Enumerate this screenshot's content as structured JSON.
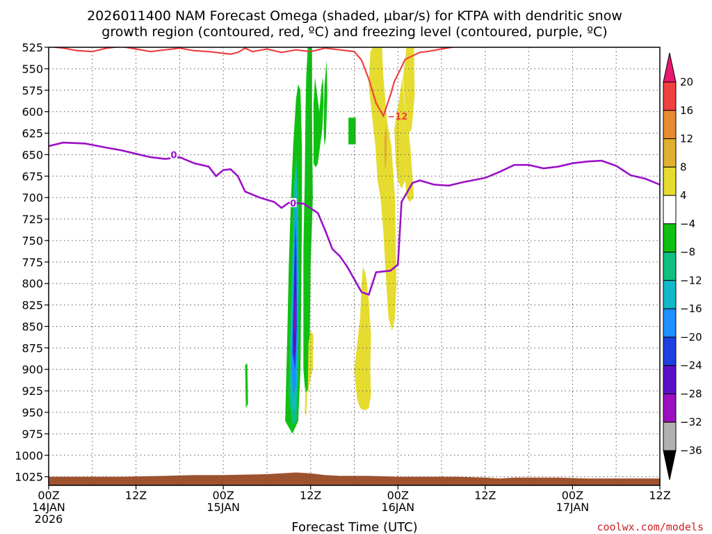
{
  "chart_data": {
    "type": "area",
    "title": "2026011400 NAM Forecast Omega (shaded, µbar/s) for KTPA with dendritic snow",
    "title_line2": "growth region (contoured, red, ºC) and freezing level (contoured, purple, ºC)",
    "xlabel": "Forecast Time (UTC)",
    "ylabel": "",
    "watermark": "coolwx.com/models",
    "yticks": [
      525,
      550,
      575,
      600,
      625,
      650,
      675,
      700,
      725,
      750,
      775,
      800,
      825,
      850,
      875,
      900,
      925,
      950,
      975,
      1000,
      1025
    ],
    "ylim": [
      525,
      1035
    ],
    "xlim": [
      0,
      84
    ],
    "xticks": [
      {
        "h": 0,
        "label": "00Z",
        "date": "14JAN",
        "year": "2026"
      },
      {
        "h": 12,
        "label": "12Z",
        "date": "",
        "year": ""
      },
      {
        "h": 24,
        "label": "00Z",
        "date": "15JAN",
        "year": ""
      },
      {
        "h": 36,
        "label": "12Z",
        "date": "",
        "year": ""
      },
      {
        "h": 48,
        "label": "00Z",
        "date": "16JAN",
        "year": ""
      },
      {
        "h": 60,
        "label": "12Z",
        "date": "",
        "year": ""
      },
      {
        "h": 72,
        "label": "00Z",
        "date": "17JAN",
        "year": ""
      },
      {
        "h": 84,
        "label": "12Z",
        "date": "",
        "year": ""
      }
    ],
    "colorbar": {
      "labels": [
        "20",
        "16",
        "12",
        "8",
        "4",
        "−4",
        "−8",
        "−12",
        "−16",
        "−20",
        "−24",
        "−28",
        "−32",
        "−36"
      ],
      "colors": [
        "#e8196e",
        "#f04040",
        "#e88a30",
        "#e0b030",
        "#e6dc30",
        "#ffffff",
        "#10c010",
        "#10c080",
        "#10b8c8",
        "#1e90ff",
        "#1e40e0",
        "#5a10c8",
        "#9a10c0",
        "#b0b0b0",
        "#000000"
      ]
    },
    "freezing_level": {
      "name": "freezing level (0 ºC)",
      "color": "#9b10c8",
      "contour_label": "0",
      "points": [
        [
          0,
          640
        ],
        [
          2,
          636
        ],
        [
          5,
          637
        ],
        [
          8,
          642
        ],
        [
          10,
          645
        ],
        [
          12,
          649
        ],
        [
          14,
          653
        ],
        [
          16,
          655
        ],
        [
          18,
          653
        ],
        [
          20,
          660
        ],
        [
          22,
          664
        ],
        [
          23,
          675
        ],
        [
          24,
          668
        ],
        [
          25,
          667
        ],
        [
          26,
          675
        ],
        [
          27,
          693
        ],
        [
          29,
          700
        ],
        [
          31,
          705
        ],
        [
          32,
          712
        ],
        [
          33,
          706
        ],
        [
          35,
          707
        ],
        [
          37,
          718
        ],
        [
          38,
          738
        ],
        [
          39,
          760
        ],
        [
          40,
          768
        ],
        [
          41,
          780
        ],
        [
          42,
          795
        ],
        [
          43,
          810
        ],
        [
          44,
          813
        ],
        [
          45,
          787
        ],
        [
          47,
          785
        ],
        [
          48,
          778
        ],
        [
          48.5,
          705
        ],
        [
          50,
          683
        ],
        [
          51,
          680
        ],
        [
          53,
          685
        ],
        [
          55,
          686
        ],
        [
          57,
          682
        ],
        [
          60,
          677
        ],
        [
          62,
          670
        ],
        [
          64,
          662
        ],
        [
          66,
          662
        ],
        [
          68,
          666
        ],
        [
          70,
          664
        ],
        [
          72,
          660
        ],
        [
          74,
          658
        ],
        [
          76,
          657
        ],
        [
          78,
          663
        ],
        [
          80,
          674
        ],
        [
          82,
          678
        ],
        [
          84,
          685
        ]
      ]
    },
    "dgz_isotherm": {
      "name": "dendritic snow growth region (-12 ºC)",
      "color": "#f04040",
      "contour_label": "−12",
      "points": [
        [
          0,
          524
        ],
        [
          2,
          526
        ],
        [
          4,
          529
        ],
        [
          6,
          530
        ],
        [
          8,
          526
        ],
        [
          10,
          524
        ],
        [
          12,
          527
        ],
        [
          14,
          530
        ],
        [
          16,
          528
        ],
        [
          18,
          526
        ],
        [
          20,
          529
        ],
        [
          22,
          530
        ],
        [
          24,
          532
        ],
        [
          25,
          533
        ],
        [
          26,
          531
        ],
        [
          27,
          526
        ],
        [
          28,
          530
        ],
        [
          30,
          527
        ],
        [
          32,
          531
        ],
        [
          34,
          528
        ],
        [
          36,
          530
        ],
        [
          38,
          526
        ],
        [
          40,
          528
        ],
        [
          42,
          530
        ],
        [
          43,
          540
        ],
        [
          44,
          562
        ],
        [
          45,
          590
        ],
        [
          46,
          605
        ],
        [
          47,
          580
        ],
        [
          47.5,
          565
        ],
        [
          49,
          539
        ],
        [
          51,
          531
        ],
        [
          52,
          530
        ],
        [
          54,
          527
        ],
        [
          56,
          524
        ],
        [
          60,
          524
        ],
        [
          66,
          524
        ],
        [
          72,
          524
        ],
        [
          80,
          524
        ],
        [
          84,
          524
        ]
      ]
    },
    "omega_regions": [
      {
        "value": "-4",
        "color": "#10c010",
        "points": [
          [
            32.5,
            960
          ],
          [
            32.8,
            860
          ],
          [
            33,
            780
          ],
          [
            33.3,
            700
          ],
          [
            33.6,
            640
          ],
          [
            34,
            585
          ],
          [
            34.3,
            568
          ],
          [
            34.6,
            575
          ],
          [
            34.8,
            640
          ],
          [
            34.8,
            720
          ],
          [
            34.7,
            820
          ],
          [
            34.6,
            900
          ],
          [
            34.3,
            960
          ],
          [
            33.5,
            975
          ]
        ]
      },
      {
        "value": "-4",
        "color": "#10c010",
        "points": [
          [
            35,
            900
          ],
          [
            35,
            760
          ],
          [
            35.2,
            680
          ],
          [
            35.3,
            600
          ],
          [
            35.4,
            560
          ],
          [
            35.6,
            525
          ],
          [
            36.2,
            525
          ],
          [
            36.2,
            610
          ],
          [
            36.3,
            700
          ],
          [
            36,
            780
          ],
          [
            35.9,
            850
          ],
          [
            35.8,
            920
          ],
          [
            35.3,
            930
          ]
        ]
      },
      {
        "value": "-4",
        "color": "#10c010",
        "points": [
          [
            36.4,
            660
          ],
          [
            36.4,
            590
          ],
          [
            36.6,
            560
          ],
          [
            37.2,
            600
          ],
          [
            37.5,
            570
          ],
          [
            37.7,
            560
          ],
          [
            37.8,
            590
          ],
          [
            37.6,
            620
          ],
          [
            37.3,
            640
          ],
          [
            37,
            660
          ],
          [
            36.7,
            665
          ]
        ]
      },
      {
        "value": "-4",
        "color": "#10c010",
        "points": [
          [
            37.8,
            620
          ],
          [
            37.9,
            570
          ],
          [
            38.2,
            540
          ],
          [
            38.3,
            580
          ],
          [
            38.1,
            630
          ],
          [
            37.9,
            640
          ]
        ]
      },
      {
        "value": "-4",
        "color": "#10c010",
        "points": [
          [
            27,
            895
          ],
          [
            27.3,
            893
          ],
          [
            27.4,
            940
          ],
          [
            27.1,
            945
          ]
        ]
      },
      {
        "value": "-4",
        "color": "#10c010",
        "points": [
          [
            41.2,
            607
          ],
          [
            42.2,
            607
          ],
          [
            42.2,
            638
          ],
          [
            41.2,
            638
          ]
        ]
      },
      {
        "value": "-8",
        "color": "#10c080",
        "points": [
          [
            33,
            930
          ],
          [
            33.2,
            850
          ],
          [
            33.5,
            760
          ],
          [
            33.7,
            690
          ],
          [
            34,
            650
          ],
          [
            34.3,
            700
          ],
          [
            34.4,
            800
          ],
          [
            34.3,
            900
          ],
          [
            34.1,
            960
          ],
          [
            33.5,
            965
          ]
        ]
      },
      {
        "value": "-12",
        "color": "#10b8c8",
        "points": [
          [
            33.3,
            920
          ],
          [
            33.4,
            850
          ],
          [
            33.6,
            760
          ],
          [
            33.8,
            690
          ],
          [
            34,
            655
          ],
          [
            34.2,
            700
          ],
          [
            34.3,
            800
          ],
          [
            34.2,
            900
          ],
          [
            33.9,
            950
          ],
          [
            33.5,
            945
          ]
        ]
      },
      {
        "value": "-16",
        "color": "#1e90ff",
        "points": [
          [
            33.4,
            900
          ],
          [
            33.6,
            820
          ],
          [
            33.8,
            740
          ],
          [
            34,
            690
          ],
          [
            34.1,
            750
          ],
          [
            34.15,
            850
          ],
          [
            34,
            920
          ],
          [
            33.6,
            930
          ]
        ]
      },
      {
        "value": "-24",
        "color": "#1e40e0",
        "points": [
          [
            33.5,
            880
          ],
          [
            33.7,
            800
          ],
          [
            33.9,
            730
          ],
          [
            34.05,
            760
          ],
          [
            34.1,
            850
          ],
          [
            33.9,
            900
          ]
        ]
      },
      {
        "value": "-28",
        "color": "#5a10c8",
        "points": [
          [
            33.6,
            860
          ],
          [
            33.8,
            800
          ],
          [
            33.95,
            760
          ],
          [
            34.05,
            820
          ],
          [
            33.95,
            880
          ],
          [
            33.7,
            885
          ]
        ]
      },
      {
        "value": "-32",
        "color": "#9a10c0",
        "points": [
          [
            33.75,
            850
          ],
          [
            33.85,
            810
          ],
          [
            33.95,
            830
          ],
          [
            33.9,
            860
          ]
        ]
      },
      {
        "value": "4",
        "color": "#e6dc30",
        "points": [
          [
            44,
            570
          ],
          [
            44.2,
            530
          ],
          [
            44.8,
            522
          ],
          [
            45.8,
            522
          ],
          [
            46,
            560
          ],
          [
            46.5,
            610
          ],
          [
            47.1,
            640
          ],
          [
            47.6,
            700
          ],
          [
            47.8,
            800
          ],
          [
            47.6,
            840
          ],
          [
            47.2,
            855
          ],
          [
            46.7,
            840
          ],
          [
            46.4,
            800
          ],
          [
            46,
            740
          ],
          [
            45.6,
            700
          ],
          [
            45.2,
            680
          ],
          [
            44.9,
            640
          ],
          [
            44.5,
            610
          ]
        ]
      },
      {
        "value": "4",
        "color": "#e6dc30",
        "points": [
          [
            47.5,
            620
          ],
          [
            48.1,
            590
          ],
          [
            48.6,
            560
          ],
          [
            49,
            600
          ],
          [
            49,
            680
          ],
          [
            48.5,
            690
          ],
          [
            48,
            680
          ],
          [
            47.7,
            660
          ]
        ]
      },
      {
        "value": "4",
        "color": "#e6dc30",
        "points": [
          [
            48.7,
            560
          ],
          [
            49,
            540
          ],
          [
            49.2,
            522
          ],
          [
            50.2,
            522
          ],
          [
            50.3,
            580
          ],
          [
            49.9,
            620
          ],
          [
            49.5,
            625
          ],
          [
            49.1,
            610
          ]
        ]
      },
      {
        "value": "4",
        "color": "#e6dc30",
        "points": [
          [
            49,
            600
          ],
          [
            49.5,
            625
          ],
          [
            49.7,
            640
          ],
          [
            50.2,
            700
          ],
          [
            49.6,
            705
          ],
          [
            49.2,
            700
          ],
          [
            49,
            680
          ]
        ]
      },
      {
        "value": "4",
        "color": "#e6dc30",
        "points": [
          [
            42,
            900
          ],
          [
            42.4,
            870
          ],
          [
            42.8,
            840
          ],
          [
            43,
            800
          ],
          [
            43.2,
            780
          ],
          [
            43.6,
            790
          ],
          [
            44,
            820
          ],
          [
            44.3,
            860
          ],
          [
            44.2,
            900
          ],
          [
            44.3,
            930
          ],
          [
            44,
            945
          ],
          [
            43.4,
            948
          ],
          [
            42.8,
            945
          ],
          [
            42.4,
            935
          ],
          [
            42.2,
            920
          ]
        ]
      },
      {
        "value": "4",
        "color": "#e6dc30",
        "points": [
          [
            35.6,
            930
          ],
          [
            35.7,
            870
          ],
          [
            36,
            855
          ],
          [
            36.4,
            860
          ],
          [
            36.3,
            900
          ],
          [
            36,
            910
          ]
        ]
      },
      {
        "value": "4",
        "color": "#e6dc30",
        "points": [
          [
            35.2,
            950
          ],
          [
            35.3,
            920
          ],
          [
            35.5,
            930
          ],
          [
            35.4,
            955
          ]
        ]
      },
      {
        "value": "8",
        "color": "#e0b030",
        "points": [
          [
            46.1,
            635
          ],
          [
            46.3,
            615
          ],
          [
            46.5,
            630
          ],
          [
            46.4,
            660
          ],
          [
            46.2,
            667
          ]
        ]
      }
    ],
    "terrain": {
      "name": "surface",
      "color": "#a0522d",
      "points": [
        [
          0,
          1025
        ],
        [
          10,
          1025
        ],
        [
          16,
          1024
        ],
        [
          20,
          1023
        ],
        [
          24,
          1023
        ],
        [
          30,
          1022
        ],
        [
          32,
          1021
        ],
        [
          34,
          1020
        ],
        [
          36,
          1021
        ],
        [
          38,
          1023
        ],
        [
          40,
          1024
        ],
        [
          44,
          1024
        ],
        [
          48,
          1025
        ],
        [
          56,
          1025
        ],
        [
          60,
          1026
        ],
        [
          62,
          1027
        ],
        [
          64,
          1026
        ],
        [
          70,
          1026
        ],
        [
          74,
          1027
        ],
        [
          84,
          1027
        ]
      ]
    }
  }
}
